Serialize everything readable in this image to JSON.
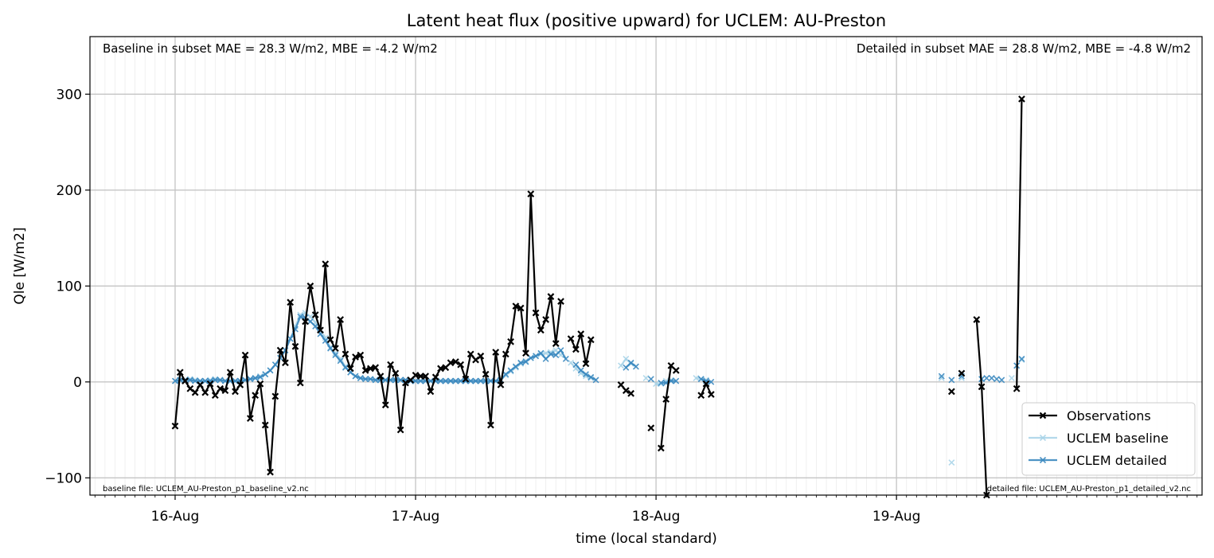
{
  "chart_data": {
    "type": "line",
    "title": "Latent heat flux (positive upward) for UCLEM: AU-Preston",
    "xlabel": "time (local standard)",
    "ylabel": "Qle [W/m2]",
    "ylim": [
      -118,
      360
    ],
    "yticks": [
      -100,
      0,
      100,
      200,
      300
    ],
    "xlim_hours": [
      -8.5,
      102.5
    ],
    "xticks": [
      {
        "hour": 0,
        "label": "16-Aug"
      },
      {
        "hour": 24,
        "label": "17-Aug"
      },
      {
        "hour": 48,
        "label": "18-Aug"
      },
      {
        "hour": 72,
        "label": "19-Aug"
      }
    ],
    "grid": true,
    "legend_position": "lower right",
    "stats_left": "Baseline in subset MAE = 28.3 W/m2, MBE = -4.2 W/m2",
    "stats_right": "Detailed in subset MAE = 28.8 W/m2, MBE = -4.8 W/m2",
    "file_left": "baseline file: UCLEM_AU-Preston_p1_baseline_v2.nc",
    "file_right": "detailed file: UCLEM_AU-Preston_p1_detailed_v2.nc",
    "series": [
      {
        "name": "Observations",
        "color": "#000000",
        "start_hour": 0,
        "step_hours": 0.5,
        "values": [
          -46,
          10,
          1,
          -7,
          -11,
          -3,
          -11,
          -2,
          -14,
          -7,
          -9,
          10,
          -10,
          -3,
          28,
          -38,
          -14,
          -2,
          -45,
          -94,
          -15,
          33,
          20,
          83,
          37,
          -1,
          63,
          100,
          70,
          54,
          123,
          44,
          35,
          65,
          29,
          14,
          26,
          28,
          12,
          14,
          15,
          6,
          -24,
          18,
          9,
          -50,
          -1,
          2,
          7,
          6,
          6,
          -10,
          5,
          14,
          15,
          20,
          21,
          18,
          3,
          29,
          23,
          27,
          8,
          -45,
          31,
          -3,
          29,
          42,
          79,
          77,
          30,
          196,
          72,
          54,
          65,
          89,
          40,
          84,
          null,
          45,
          34,
          50,
          19,
          44,
          null,
          null,
          null,
          null,
          null,
          -3,
          -9,
          -12,
          null,
          null,
          null,
          -48,
          null,
          -69,
          -18,
          17,
          12,
          null,
          null,
          null,
          null,
          -14,
          -2,
          -13
        ],
        "extra_points": [
          {
            "hour": 77.5,
            "value": -10
          },
          {
            "hour": 78.5,
            "value": 9
          }
        ],
        "extra_segment": [
          {
            "hour": 80.0,
            "value": 65
          },
          {
            "hour": 80.5,
            "value": -5
          },
          {
            "hour": 81.0,
            "value": -118
          }
        ],
        "tail_segment": [
          {
            "hour": 84.0,
            "value": -7
          },
          {
            "hour": 84.5,
            "value": 295
          }
        ]
      },
      {
        "name": "UCLEM baseline",
        "color": "#a6d2e8",
        "start_hour": 0,
        "step_hours": 0.5,
        "values": [
          1,
          2,
          2,
          3,
          2,
          1,
          1,
          2,
          3,
          2,
          1,
          1,
          1,
          1,
          2,
          3,
          4,
          6,
          8,
          12,
          18,
          25,
          33,
          45,
          58,
          70,
          72,
          68,
          62,
          54,
          46,
          36,
          30,
          24,
          16,
          10,
          6,
          4,
          3,
          3,
          2,
          2,
          2,
          2,
          2,
          2,
          2,
          1,
          1,
          1,
          1,
          1,
          1,
          1,
          1,
          1,
          1,
          1,
          1,
          1,
          1,
          1,
          1,
          1,
          1,
          2,
          7,
          11,
          15,
          19,
          22,
          25,
          27,
          29,
          30,
          31,
          33,
          28,
          null,
          20,
          14,
          9,
          6,
          4,
          null,
          null,
          null,
          null,
          null,
          17,
          24,
          19,
          null,
          null,
          4,
          null,
          -2,
          -2,
          1,
          2,
          null,
          null,
          null,
          null,
          4,
          3,
          2
        ],
        "extra_points": [
          {
            "hour": 76.5,
            "value": 4
          },
          {
            "hour": 77.5,
            "value": -84
          },
          {
            "hour": 78.5,
            "value": 4
          },
          {
            "hour": 80.5,
            "value": 3
          },
          {
            "hour": 83.5,
            "value": 4
          },
          {
            "hour": 84.0,
            "value": 17
          },
          {
            "hour": 84.5,
            "value": 23
          }
        ]
      },
      {
        "name": "UCLEM detailed",
        "color": "#3b88bf",
        "start_hour": 0,
        "step_hours": 0.5,
        "values": [
          1,
          2,
          2,
          2,
          1,
          1,
          1,
          1,
          2,
          2,
          1,
          1,
          1,
          1,
          2,
          3,
          4,
          5,
          8,
          12,
          18,
          25,
          33,
          45,
          55,
          68,
          67,
          63,
          58,
          50,
          43,
          35,
          28,
          22,
          15,
          10,
          6,
          4,
          3,
          3,
          2,
          2,
          2,
          2,
          2,
          2,
          2,
          1,
          1,
          1,
          1,
          1,
          1,
          1,
          1,
          1,
          1,
          1,
          1,
          1,
          1,
          1,
          1,
          1,
          1,
          2,
          8,
          12,
          16,
          20,
          21,
          25,
          27,
          30,
          24,
          29,
          28,
          33,
          24,
          null,
          18,
          12,
          8,
          5,
          2,
          null,
          null,
          null,
          null,
          null,
          15,
          20,
          16,
          null,
          null,
          3,
          null,
          -1,
          -1,
          1,
          1,
          null,
          null,
          null,
          null,
          3,
          1,
          0
        ],
        "extra_points": [
          {
            "hour": 76.5,
            "value": 6
          },
          {
            "hour": 77.5,
            "value": 2
          },
          {
            "hour": 78.5,
            "value": 6
          },
          {
            "hour": 80.5,
            "value": 3
          },
          {
            "hour": 81.0,
            "value": 4
          },
          {
            "hour": 81.5,
            "value": 4
          },
          {
            "hour": 82.0,
            "value": 3
          },
          {
            "hour": 82.5,
            "value": 2
          },
          {
            "hour": 84.0,
            "value": 17
          },
          {
            "hour": 84.5,
            "value": 24
          }
        ]
      }
    ]
  }
}
